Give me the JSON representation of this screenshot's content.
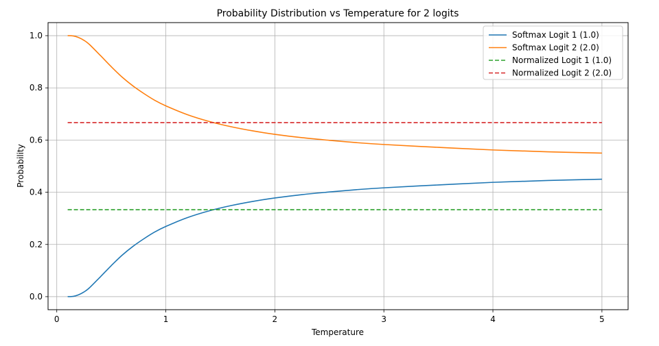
{
  "chart_data": {
    "type": "line",
    "title": "Probability Distribution vs Temperature for 2 logits",
    "xlabel": "Temperature",
    "ylabel": "Probability",
    "xlim": [
      -0.08,
      5.24
    ],
    "ylim": [
      -0.05,
      1.05
    ],
    "xticks": [
      0,
      1,
      2,
      3,
      4,
      5
    ],
    "xtick_labels": [
      "0",
      "1",
      "2",
      "3",
      "4",
      "5"
    ],
    "yticks": [
      0.0,
      0.2,
      0.4,
      0.6,
      0.8,
      1.0
    ],
    "ytick_labels": [
      "0.0",
      "0.2",
      "0.4",
      "0.6",
      "0.8",
      "1.0"
    ],
    "grid": true,
    "legend_position": "top-right",
    "x": [
      0.1,
      0.15,
      0.2,
      0.25,
      0.3,
      0.4,
      0.5,
      0.6,
      0.7,
      0.8,
      0.9,
      1.0,
      1.2,
      1.4,
      1.6,
      1.8,
      2.0,
      2.25,
      2.5,
      2.75,
      3.0,
      3.5,
      4.0,
      4.5,
      5.0
    ],
    "series": [
      {
        "name": "Softmax Logit 1 (1.0)",
        "color": "#1f77b4",
        "style": "solid",
        "values": [
          0.0,
          0.001,
          0.007,
          0.018,
          0.034,
          0.076,
          0.119,
          0.159,
          0.193,
          0.222,
          0.248,
          0.269,
          0.303,
          0.329,
          0.349,
          0.365,
          0.378,
          0.391,
          0.401,
          0.41,
          0.417,
          0.428,
          0.438,
          0.445,
          0.45
        ]
      },
      {
        "name": "Softmax Logit 2 (2.0)",
        "color": "#ff7f0e",
        "style": "solid",
        "values": [
          1.0,
          0.999,
          0.993,
          0.982,
          0.966,
          0.924,
          0.881,
          0.841,
          0.807,
          0.778,
          0.752,
          0.731,
          0.697,
          0.671,
          0.651,
          0.635,
          0.622,
          0.609,
          0.599,
          0.59,
          0.583,
          0.572,
          0.562,
          0.555,
          0.55
        ]
      },
      {
        "name": "Normalized Logit 1 (1.0)",
        "color": "#2ca02c",
        "style": "dashed",
        "values": [
          0.333,
          0.333,
          0.333,
          0.333,
          0.333,
          0.333,
          0.333,
          0.333,
          0.333,
          0.333,
          0.333,
          0.333,
          0.333,
          0.333,
          0.333,
          0.333,
          0.333,
          0.333,
          0.333,
          0.333,
          0.333,
          0.333,
          0.333,
          0.333,
          0.333
        ]
      },
      {
        "name": "Normalized Logit 2 (2.0)",
        "color": "#d62728",
        "style": "dashed",
        "values": [
          0.667,
          0.667,
          0.667,
          0.667,
          0.667,
          0.667,
          0.667,
          0.667,
          0.667,
          0.667,
          0.667,
          0.667,
          0.667,
          0.667,
          0.667,
          0.667,
          0.667,
          0.667,
          0.667,
          0.667,
          0.667,
          0.667,
          0.667,
          0.667,
          0.667
        ]
      }
    ]
  }
}
